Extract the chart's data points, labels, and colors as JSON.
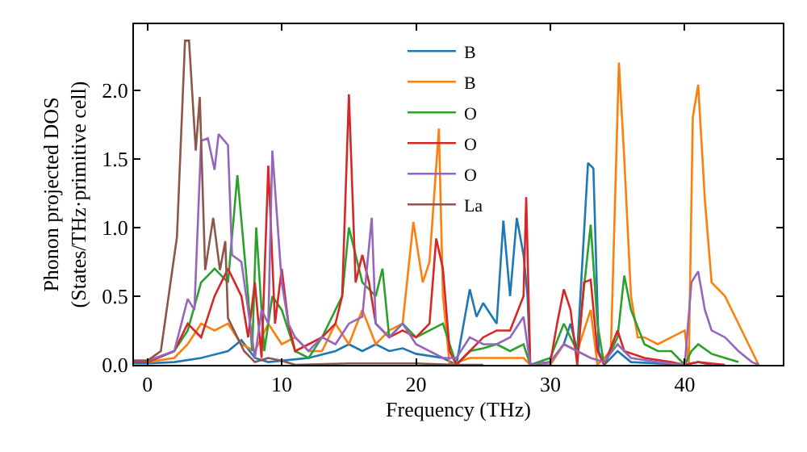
{
  "chart_data": {
    "type": "line",
    "xlabel": "Frequency (THz)",
    "ylabel": "Phonon projected DOS\n(States/THz·primitive cell)",
    "xlim": [
      -1,
      47.3
    ],
    "ylim": [
      0,
      2.48
    ],
    "xticks": [
      0,
      10,
      20,
      30,
      40
    ],
    "yticks": [
      {
        "value": 0,
        "label": "0.0"
      },
      {
        "value": 0.5,
        "label": "0.5"
      },
      {
        "value": 1,
        "label": "1.0"
      },
      {
        "value": 1.5,
        "label": "1.5"
      },
      {
        "value": 2,
        "label": "2.0"
      }
    ],
    "legend": "top",
    "marker": "none",
    "line_style": "solid",
    "series": [
      {
        "name": "B",
        "color": "#1f77b4",
        "x": [
          -1,
          0,
          2,
          4,
          6,
          7,
          8,
          9,
          10,
          12,
          14,
          15,
          16,
          17,
          18,
          19,
          20,
          22,
          23,
          24,
          24.5,
          25,
          26,
          26.5,
          27,
          27.5,
          28,
          28.3,
          28.5,
          30,
          31,
          31.5,
          32,
          32.8,
          33.2,
          33.6,
          34,
          35,
          36,
          40,
          41,
          42
        ],
        "values": [
          0.01,
          0.01,
          0.02,
          0.05,
          0.1,
          0.18,
          0.05,
          0.02,
          0.03,
          0.05,
          0.1,
          0.15,
          0.1,
          0.15,
          0.1,
          0.12,
          0.08,
          0.05,
          0,
          0.55,
          0.35,
          0.45,
          0.3,
          1.05,
          0.5,
          1.07,
          0.8,
          0.5,
          0,
          0.02,
          0.15,
          0.3,
          0.1,
          1.47,
          1.43,
          0.1,
          0,
          0.1,
          0.02,
          0,
          0.02,
          0
        ]
      },
      {
        "name": "B",
        "color": "#ff7f0e",
        "x": [
          -1,
          0,
          2,
          3,
          4,
          5,
          6,
          7,
          8,
          9,
          10,
          11,
          12,
          13,
          14,
          15,
          16,
          17,
          18,
          19,
          19.8,
          20.5,
          21,
          21.7,
          22,
          22.5,
          24,
          26,
          28,
          28.5,
          30,
          31,
          32,
          33,
          33.5,
          34.5,
          35.1,
          35.5,
          36,
          36.5,
          37,
          38,
          39,
          40,
          40.3,
          40.6,
          41,
          41.5,
          42,
          43,
          44,
          45,
          45.5
        ],
        "values": [
          0.02,
          0.02,
          0.05,
          0.15,
          0.3,
          0.25,
          0.3,
          0.15,
          0.1,
          0.3,
          0.15,
          0.2,
          0.1,
          0.1,
          0.3,
          0.15,
          0.4,
          0.15,
          0.25,
          0.3,
          1.04,
          0.6,
          0.75,
          1.72,
          0.5,
          0,
          0.05,
          0.05,
          0.05,
          0,
          0,
          0.15,
          0.1,
          0.4,
          0,
          0.1,
          2.2,
          1.5,
          0.5,
          0.2,
          0.2,
          0.15,
          0.2,
          0.25,
          0,
          1.8,
          2.04,
          1.2,
          0.6,
          0.5,
          0.3,
          0.1,
          0
        ]
      },
      {
        "name": "O",
        "color": "#2ca02c",
        "x": [
          -1,
          0,
          2,
          3,
          4,
          5,
          6,
          6.7,
          7.5,
          7.8,
          8.1,
          8.7,
          9.3,
          10,
          11,
          12,
          13,
          14,
          14.5,
          15,
          15.5,
          16,
          17,
          17.5,
          18,
          19,
          20,
          21,
          22,
          23,
          24,
          25,
          26,
          27,
          28,
          28.5,
          30,
          31,
          32,
          33,
          33.5,
          34,
          35,
          35.5,
          36,
          37,
          38,
          39,
          40,
          40.5,
          41,
          42,
          43,
          44
        ],
        "values": [
          0.02,
          0.02,
          0.1,
          0.25,
          0.6,
          0.7,
          0.6,
          1.38,
          0.5,
          0.1,
          1.0,
          0.1,
          0.5,
          0.4,
          0.1,
          0.05,
          0.2,
          0.4,
          0.5,
          1.0,
          0.8,
          0.6,
          0.5,
          0.7,
          0.2,
          0.3,
          0.2,
          0.25,
          0.3,
          0,
          0.1,
          0.12,
          0.15,
          0.1,
          0.15,
          0,
          0.05,
          0.3,
          0.1,
          1.02,
          0.3,
          0,
          0.2,
          0.65,
          0.4,
          0.15,
          0.1,
          0.1,
          0,
          0.1,
          0.15,
          0.08,
          0.05,
          0.02
        ]
      },
      {
        "name": "O",
        "color": "#d62728",
        "x": [
          -1,
          0,
          2,
          3,
          4,
          5,
          6,
          7,
          7.5,
          8,
          8.5,
          9,
          9.5,
          10,
          10.5,
          11,
          12,
          13,
          14,
          14.5,
          15,
          15.5,
          16,
          16.5,
          17,
          18,
          19,
          20,
          21,
          21.5,
          22,
          22.5,
          23,
          24,
          25,
          26,
          27,
          28,
          28.2,
          28.5,
          30,
          30.5,
          31,
          31.5,
          32,
          32.5,
          33,
          33.5,
          34,
          35,
          35.5,
          37,
          39,
          40,
          41,
          43
        ],
        "values": [
          0.02,
          0.02,
          0.1,
          0.3,
          0.2,
          0.5,
          0.7,
          0.5,
          0.2,
          0.6,
          0.05,
          1.45,
          0.3,
          0.7,
          0.3,
          0.1,
          0.15,
          0.2,
          0.3,
          0.5,
          1.97,
          0.6,
          0.8,
          0.6,
          0.3,
          0.2,
          0.25,
          0.2,
          0.3,
          0.92,
          0.7,
          0.1,
          0,
          0.1,
          0.2,
          0.25,
          0.25,
          0.5,
          1.22,
          0,
          0.02,
          0.3,
          0.55,
          0.4,
          0,
          0.6,
          0.62,
          0.1,
          0,
          0.25,
          0.1,
          0.05,
          0.02,
          0,
          0.02,
          0
        ]
      },
      {
        "name": "O",
        "color": "#9467bd",
        "x": [
          -1,
          0,
          2,
          3,
          3.5,
          4,
          4.5,
          5,
          5.3,
          6,
          6.3,
          7,
          7.5,
          8,
          8.5,
          9,
          9.3,
          10,
          10.5,
          11,
          12,
          13,
          14,
          15,
          16,
          16.7,
          17,
          18,
          19,
          20,
          22,
          23,
          24,
          25,
          26,
          27,
          28,
          28.5,
          30,
          31,
          32,
          33,
          34,
          35,
          36,
          38,
          40,
          40.5,
          41,
          41.5,
          42,
          43,
          44,
          45,
          45.5
        ],
        "values": [
          0.03,
          0.03,
          0.1,
          0.48,
          0.4,
          1.63,
          1.65,
          1.42,
          1.68,
          1.6,
          0.8,
          0.75,
          0.4,
          0.05,
          0.4,
          0.3,
          1.56,
          0.6,
          0.3,
          0.2,
          0.1,
          0.2,
          0.15,
          0.3,
          0.35,
          1.07,
          0.3,
          0.2,
          0.3,
          0.15,
          0.05,
          0.05,
          0.2,
          0.15,
          0.15,
          0.2,
          0.35,
          0,
          0.02,
          0.15,
          0.1,
          0.05,
          0.02,
          0.15,
          0.05,
          0.02,
          0,
          0.6,
          0.68,
          0.4,
          0.25,
          0.2,
          0.1,
          0.02,
          0
        ]
      },
      {
        "name": "La",
        "color": "#8c564b",
        "x": [
          -1,
          0,
          1,
          2.2,
          2.8,
          3.1,
          3.6,
          3.9,
          4.3,
          4.9,
          5.4,
          5.8,
          6,
          6.6,
          7.2,
          8,
          9,
          10,
          11,
          15,
          20,
          23,
          25
        ],
        "values": [
          0.03,
          0.03,
          0.1,
          0.93,
          2.36,
          2.36,
          1.56,
          1.95,
          0.69,
          1.07,
          0.69,
          0.9,
          0.34,
          0.22,
          0.1,
          0.02,
          0.05,
          0.03,
          0,
          0.01,
          0.01,
          0,
          0
        ]
      }
    ]
  }
}
